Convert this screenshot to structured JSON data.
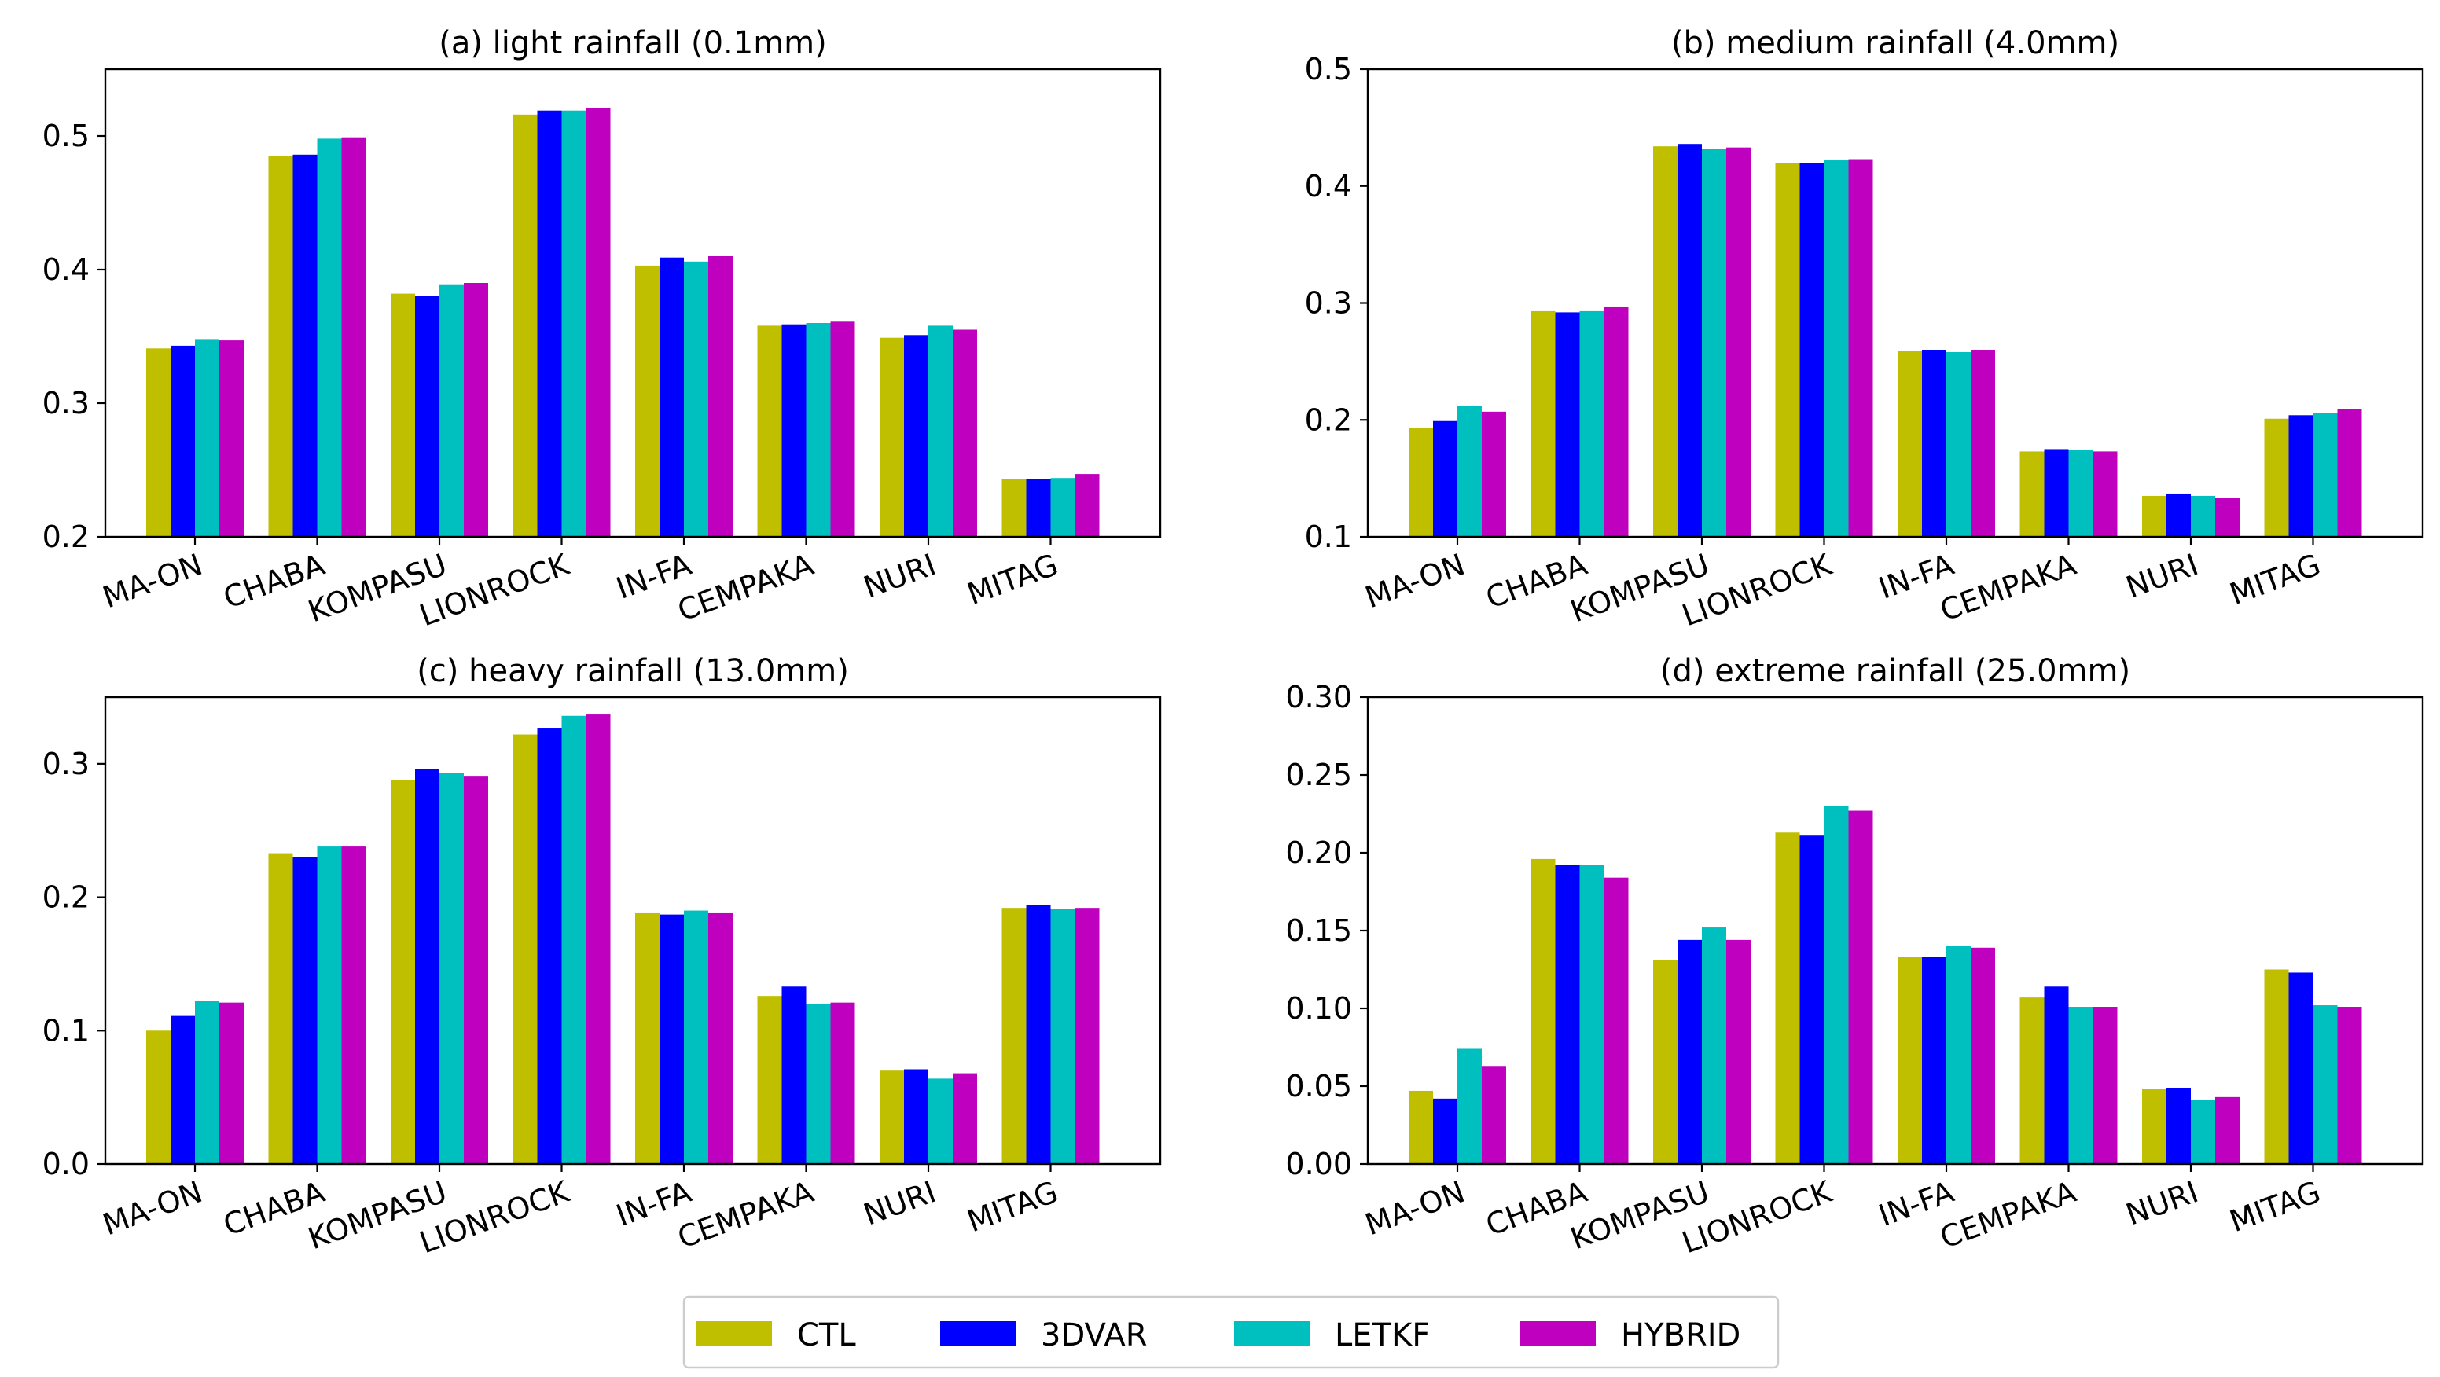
{
  "chart_data": [
    {
      "type": "bar",
      "title": "(a) light rainfall (0.1mm)",
      "categories": [
        "MA-ON",
        "CHABA",
        "KOMPASU",
        "LIONROCK",
        "IN-FA",
        "CEMPAKA",
        "NURI",
        "MITAG"
      ],
      "ylim": [
        0.2,
        0.55
      ],
      "yticks": [
        "0.2",
        "0.3",
        "0.4",
        "0.5"
      ],
      "series": [
        {
          "name": "CTL",
          "values": [
            0.341,
            0.485,
            0.382,
            0.516,
            0.403,
            0.358,
            0.349,
            0.243
          ]
        },
        {
          "name": "3DVAR",
          "values": [
            0.343,
            0.486,
            0.38,
            0.519,
            0.409,
            0.359,
            0.351,
            0.243
          ]
        },
        {
          "name": "LETKF",
          "values": [
            0.348,
            0.498,
            0.389,
            0.519,
            0.406,
            0.36,
            0.358,
            0.244
          ]
        },
        {
          "name": "HYBRID",
          "values": [
            0.347,
            0.499,
            0.39,
            0.521,
            0.41,
            0.361,
            0.355,
            0.247
          ]
        }
      ]
    },
    {
      "type": "bar",
      "title": "(b) medium rainfall (4.0mm)",
      "categories": [
        "MA-ON",
        "CHABA",
        "KOMPASU",
        "LIONROCK",
        "IN-FA",
        "CEMPAKA",
        "NURI",
        "MITAG"
      ],
      "ylim": [
        0.1,
        0.5
      ],
      "yticks": [
        "0.1",
        "0.2",
        "0.3",
        "0.4",
        "0.5"
      ],
      "series": [
        {
          "name": "CTL",
          "values": [
            0.193,
            0.293,
            0.434,
            0.42,
            0.259,
            0.173,
            0.135,
            0.201
          ]
        },
        {
          "name": "3DVAR",
          "values": [
            0.199,
            0.292,
            0.436,
            0.42,
            0.26,
            0.175,
            0.137,
            0.204
          ]
        },
        {
          "name": "LETKF",
          "values": [
            0.212,
            0.293,
            0.432,
            0.422,
            0.258,
            0.174,
            0.135,
            0.206
          ]
        },
        {
          "name": "HYBRID",
          "values": [
            0.207,
            0.297,
            0.433,
            0.423,
            0.26,
            0.173,
            0.133,
            0.209
          ]
        }
      ]
    },
    {
      "type": "bar",
      "title": "(c) heavy rainfall (13.0mm)",
      "categories": [
        "MA-ON",
        "CHABA",
        "KOMPASU",
        "LIONROCK",
        "IN-FA",
        "CEMPAKA",
        "NURI",
        "MITAG"
      ],
      "ylim": [
        0.0,
        0.35
      ],
      "yticks": [
        "0.0",
        "0.1",
        "0.2",
        "0.3"
      ],
      "series": [
        {
          "name": "CTL",
          "values": [
            0.1,
            0.233,
            0.288,
            0.322,
            0.188,
            0.126,
            0.07,
            0.192
          ]
        },
        {
          "name": "3DVAR",
          "values": [
            0.111,
            0.23,
            0.296,
            0.327,
            0.187,
            0.133,
            0.071,
            0.194
          ]
        },
        {
          "name": "LETKF",
          "values": [
            0.122,
            0.238,
            0.293,
            0.336,
            0.19,
            0.12,
            0.064,
            0.191
          ]
        },
        {
          "name": "HYBRID",
          "values": [
            0.121,
            0.238,
            0.291,
            0.337,
            0.188,
            0.121,
            0.068,
            0.192
          ]
        }
      ]
    },
    {
      "type": "bar",
      "title": "(d) extreme rainfall (25.0mm)",
      "categories": [
        "MA-ON",
        "CHABA",
        "KOMPASU",
        "LIONROCK",
        "IN-FA",
        "CEMPAKA",
        "NURI",
        "MITAG"
      ],
      "ylim": [
        0.0,
        0.3
      ],
      "yticks": [
        "0.00",
        "0.05",
        "0.10",
        "0.15",
        "0.20",
        "0.25",
        "0.30"
      ],
      "series": [
        {
          "name": "CTL",
          "values": [
            0.047,
            0.196,
            0.131,
            0.213,
            0.133,
            0.107,
            0.048,
            0.125
          ]
        },
        {
          "name": "3DVAR",
          "values": [
            0.042,
            0.192,
            0.144,
            0.211,
            0.133,
            0.114,
            0.049,
            0.123
          ]
        },
        {
          "name": "LETKF",
          "values": [
            0.074,
            0.192,
            0.152,
            0.23,
            0.14,
            0.101,
            0.041,
            0.102
          ]
        },
        {
          "name": "HYBRID",
          "values": [
            0.063,
            0.184,
            0.144,
            0.227,
            0.139,
            0.101,
            0.043,
            0.101
          ]
        }
      ]
    }
  ],
  "colors": {
    "CTL": "#bfbf00",
    "3DVAR": "#0000ff",
    "LETKF": "#00bfbf",
    "HYBRID": "#bf00bf"
  },
  "legend": {
    "position": "bottom-center",
    "entries": [
      "CTL",
      "3DVAR",
      "LETKF",
      "HYBRID"
    ]
  }
}
